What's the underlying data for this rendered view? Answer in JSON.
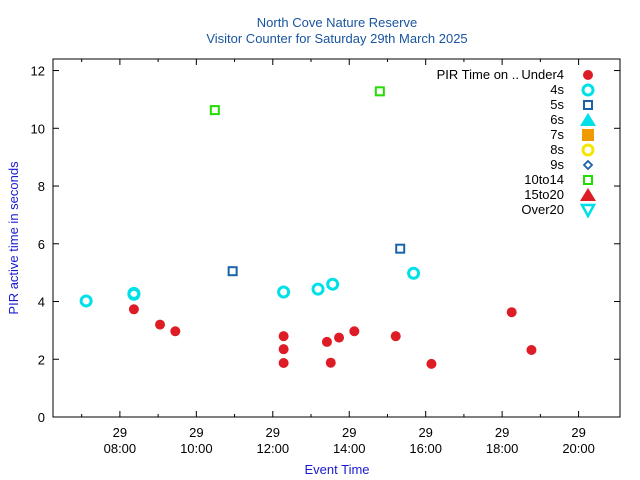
{
  "chart_data": {
    "type": "scatter",
    "title": "North Cove Nature Reserve",
    "subtitle": "Visitor Counter for Saturday 29th March 2025",
    "xlabel": "Event Time",
    "ylabel": "PIR active time in seconds",
    "xlim": [
      "2025-03-29 06:15",
      "2025-03-29 21:05"
    ],
    "ylim": [
      0,
      12.4
    ],
    "x_ticks": [
      {
        "day": "29",
        "time": "08:00",
        "value": "2025-03-29 08:00"
      },
      {
        "day": "29",
        "time": "10:00",
        "value": "2025-03-29 10:00"
      },
      {
        "day": "29",
        "time": "12:00",
        "value": "2025-03-29 12:00"
      },
      {
        "day": "29",
        "time": "14:00",
        "value": "2025-03-29 14:00"
      },
      {
        "day": "29",
        "time": "16:00",
        "value": "2025-03-29 16:00"
      },
      {
        "day": "29",
        "time": "18:00",
        "value": "2025-03-29 18:00"
      },
      {
        "day": "29",
        "time": "20:00",
        "value": "2025-03-29 20:00"
      }
    ],
    "y_ticks": [
      "0",
      "2",
      "4",
      "6",
      "8",
      "10",
      "12"
    ],
    "legend_title": "PIR Time on ..",
    "legend_position": "top-right",
    "grid": false,
    "series": [
      {
        "name": "Under4",
        "color": "#dd1c25",
        "marker": "filled-circle",
        "points": [
          {
            "x": "2025-03-29 08:22",
            "y": 3.73
          },
          {
            "x": "2025-03-29 09:03",
            "y": 3.2
          },
          {
            "x": "2025-03-29 09:27",
            "y": 2.97
          },
          {
            "x": "2025-03-29 12:17",
            "y": 2.8
          },
          {
            "x": "2025-03-29 12:17",
            "y": 2.35
          },
          {
            "x": "2025-03-29 12:17",
            "y": 1.87
          },
          {
            "x": "2025-03-29 13:25",
            "y": 2.6
          },
          {
            "x": "2025-03-29 13:31",
            "y": 1.88
          },
          {
            "x": "2025-03-29 13:44",
            "y": 2.75
          },
          {
            "x": "2025-03-29 14:08",
            "y": 2.97
          },
          {
            "x": "2025-03-29 15:13",
            "y": 2.8
          },
          {
            "x": "2025-03-29 16:09",
            "y": 1.84
          },
          {
            "x": "2025-03-29 18:15",
            "y": 3.63
          },
          {
            "x": "2025-03-29 18:46",
            "y": 2.32
          }
        ]
      },
      {
        "name": "4s",
        "color": "#00e0e8",
        "marker": "open-circle",
        "points": [
          {
            "x": "2025-03-29 07:07",
            "y": 4.02
          },
          {
            "x": "2025-03-29 08:22",
            "y": 4.28
          },
          {
            "x": "2025-03-29 08:22",
            "y": 4.25
          },
          {
            "x": "2025-03-29 12:17",
            "y": 4.33
          },
          {
            "x": "2025-03-29 13:11",
            "y": 4.43
          },
          {
            "x": "2025-03-29 13:34",
            "y": 4.6
          },
          {
            "x": "2025-03-29 15:41",
            "y": 4.98
          }
        ]
      },
      {
        "name": "5s",
        "color": "#1a63a8",
        "marker": "open-square",
        "points": [
          {
            "x": "2025-03-29 10:57",
            "y": 5.05
          },
          {
            "x": "2025-03-29 15:20",
            "y": 5.83
          }
        ]
      },
      {
        "name": "6s",
        "color": "#00e0e8",
        "marker": "filled-triangle-up",
        "points": []
      },
      {
        "name": "7s",
        "color": "#ee9a00",
        "marker": "filled-square",
        "points": []
      },
      {
        "name": "8s",
        "color": "#f5e600",
        "marker": "open-circle",
        "points": []
      },
      {
        "name": "9s",
        "color": "#1a63a8",
        "marker": "open-diamond",
        "points": []
      },
      {
        "name": "10to14",
        "color": "#22dd00",
        "marker": "open-square",
        "points": [
          {
            "x": "2025-03-29 10:29",
            "y": 10.63
          },
          {
            "x": "2025-03-29 14:48",
            "y": 11.28
          }
        ]
      },
      {
        "name": "15to20",
        "color": "#dd1c25",
        "marker": "filled-triangle-up",
        "points": []
      },
      {
        "name": "Over20",
        "color": "#00e0e8",
        "marker": "open-triangle-down",
        "points": []
      }
    ]
  }
}
